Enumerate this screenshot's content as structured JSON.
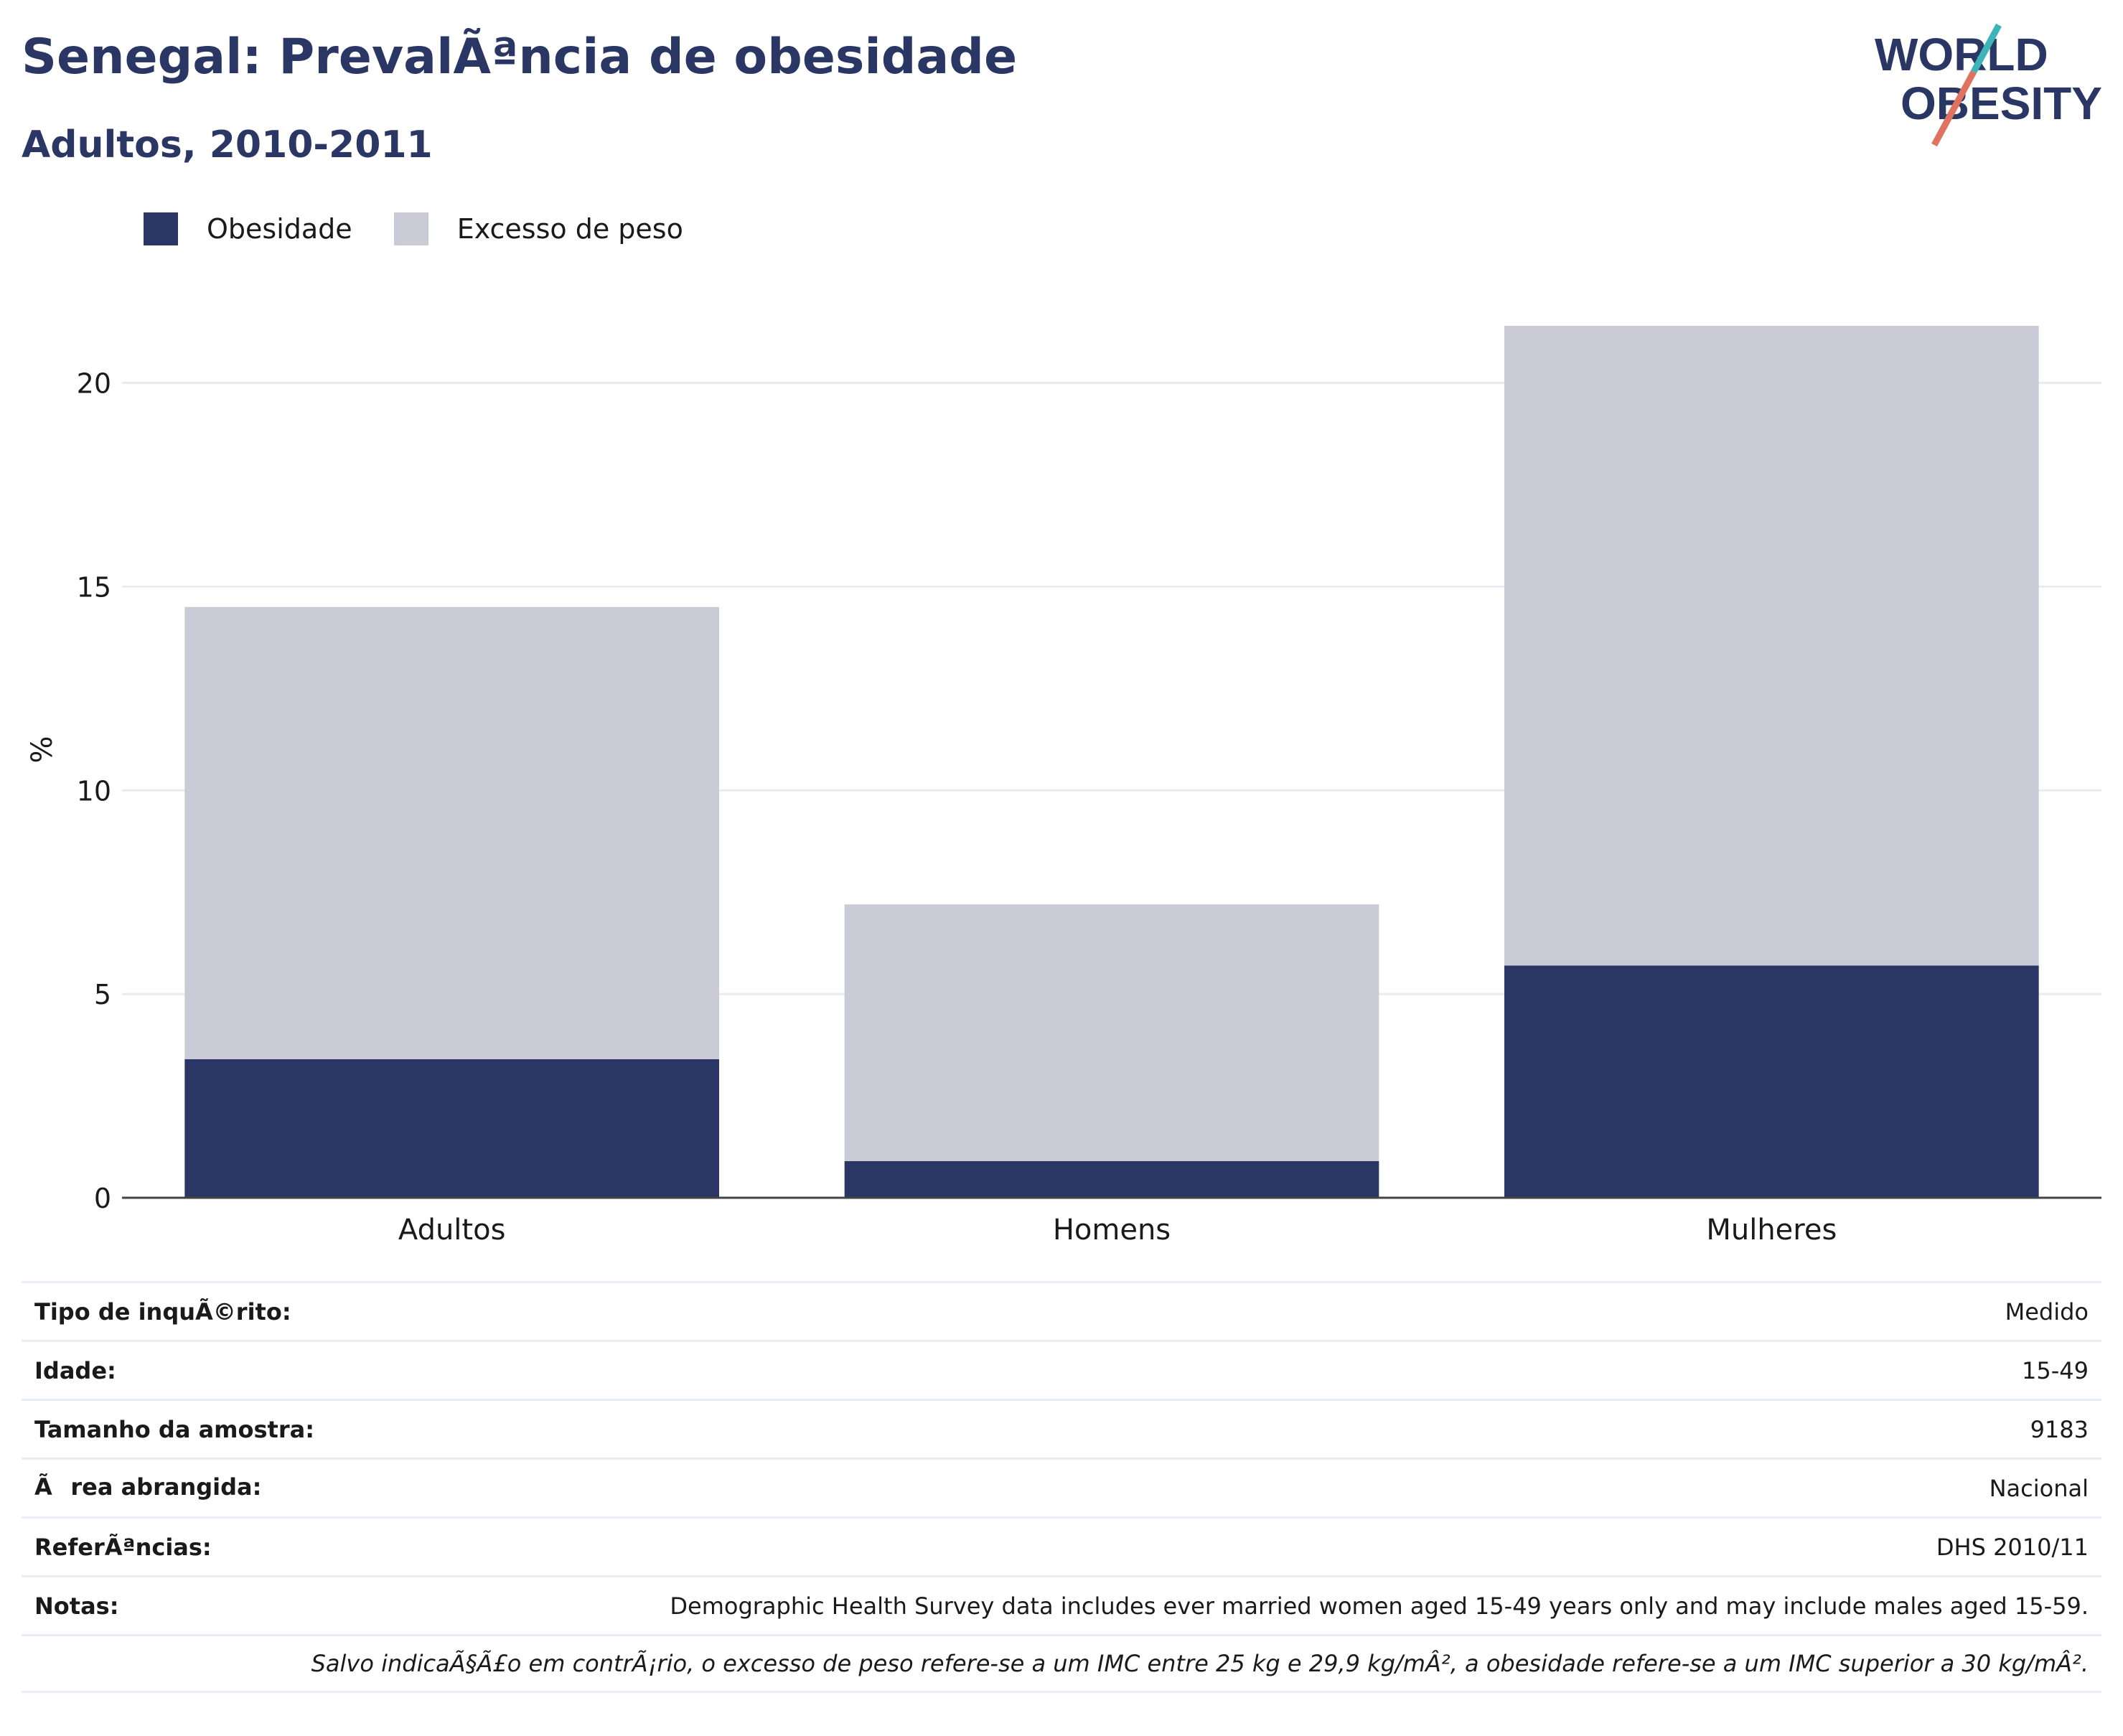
{
  "header": {
    "title": "Senegal: PrevalÃªncia de obesidade",
    "subtitle": "Adultos, 2010-2011",
    "logo_line1": "WORLD",
    "logo_line2": "OBESITY"
  },
  "colors": {
    "obesity": "#2a3663",
    "overweight": "#cacbd7",
    "title": "#2a3663",
    "logo_teal": "#3bb5b8",
    "logo_coral": "#e0735f"
  },
  "legend": [
    {
      "label": "Obesidade",
      "color": "#2a3663"
    },
    {
      "label": "Excesso de peso",
      "color": "#cacbd7"
    }
  ],
  "chart_data": {
    "type": "bar",
    "stacked": true,
    "categories": [
      "Adultos",
      "Homens",
      "Mulheres"
    ],
    "series": [
      {
        "name": "Obesidade",
        "values": [
          3.4,
          0.9,
          5.7
        ]
      },
      {
        "name": "Excesso de peso",
        "values": [
          11.1,
          6.3,
          15.7
        ]
      }
    ],
    "xlabel": "",
    "ylabel": "%",
    "ylim": [
      0,
      22
    ],
    "yticks": [
      0,
      5,
      10,
      15,
      20
    ],
    "grid": true,
    "legend_position": "top-left"
  },
  "info": [
    {
      "label": "Tipo de inquÃ©rito:",
      "value": "Medido"
    },
    {
      "label": "Idade:",
      "value": "15-49"
    },
    {
      "label": "Tamanho da amostra:",
      "value": "9183"
    },
    {
      "label": "Ãrea abrangida:",
      "value": "Nacional"
    },
    {
      "label": "ReferÃªncias:",
      "value": "DHS 2010/11"
    },
    {
      "label": "Notas:",
      "value": "Demographic Health Survey data includes ever married women aged 15-49 years only and may include males aged 15-59."
    }
  ],
  "footnote": "Salvo indicaÃ§Ã£o em contrÃ¡rio, o excesso de peso refere-se a um IMC entre 25 kg e 29,9 kg/mÂ², a obesidade refere-se a um IMC superior a 30 kg/mÂ²."
}
